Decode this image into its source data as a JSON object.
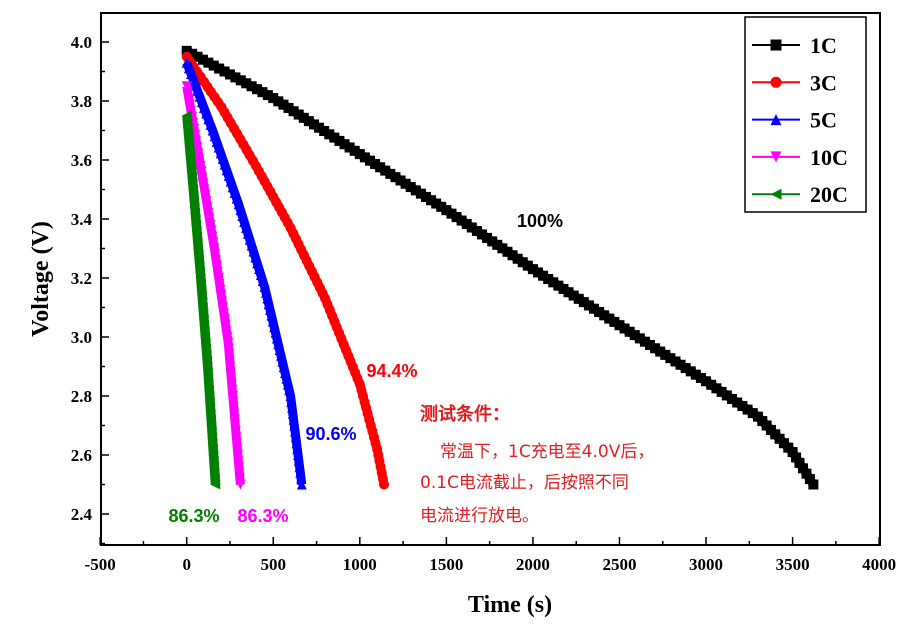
{
  "chart_data": {
    "type": "line",
    "xlabel": "Time (s)",
    "ylabel": "Voltage (V)",
    "xlim": [
      -500,
      4000
    ],
    "ylim": [
      2.3,
      4.1
    ],
    "xticks": [
      -500,
      0,
      500,
      1000,
      1500,
      2000,
      2500,
      3000,
      3500,
      4000
    ],
    "yticks": [
      "2.4",
      "2.6",
      "2.8",
      "3.0",
      "3.2",
      "3.4",
      "3.6",
      "3.8",
      "4.0"
    ],
    "legend_position": "top-right",
    "series": [
      {
        "name": "1C",
        "color": "#000000",
        "marker": "square",
        "x": [
          0,
          500,
          1000,
          1500,
          2000,
          2500,
          3000,
          3300,
          3500,
          3620
        ],
        "y": [
          3.97,
          3.81,
          3.62,
          3.43,
          3.23,
          3.04,
          2.85,
          2.73,
          2.61,
          2.5
        ]
      },
      {
        "name": "3C",
        "color": "#ff0000",
        "marker": "circle",
        "x": [
          0,
          200,
          400,
          600,
          800,
          1000,
          1100,
          1140
        ],
        "y": [
          3.95,
          3.78,
          3.58,
          3.37,
          3.13,
          2.84,
          2.62,
          2.5
        ]
      },
      {
        "name": "5C",
        "color": "#0000ff",
        "marker": "triangle-up",
        "x": [
          0,
          150,
          300,
          450,
          600,
          665
        ],
        "y": [
          3.93,
          3.7,
          3.45,
          3.17,
          2.8,
          2.5
        ]
      },
      {
        "name": "10C",
        "color": "#ff00ff",
        "marker": "triangle-down",
        "x": [
          0,
          80,
          160,
          240,
          310
        ],
        "y": [
          3.85,
          3.58,
          3.3,
          2.98,
          2.5
        ]
      },
      {
        "name": "20C",
        "color": "#008000",
        "marker": "triangle-left",
        "x": [
          0,
          40,
          80,
          120,
          165
        ],
        "y": [
          3.75,
          3.48,
          3.2,
          2.9,
          2.5
        ]
      }
    ],
    "annotations": [
      {
        "text": "100%",
        "color": "#000000"
      },
      {
        "text": "94.4%",
        "color": "#ff0000"
      },
      {
        "text": "90.6%",
        "color": "#0000ff"
      },
      {
        "text": "86.3%",
        "color": "#ff00ff"
      },
      {
        "text": "86.3%",
        "color": "#008000"
      }
    ],
    "note": {
      "title": "测试条件：",
      "lines": [
        "常温下，1C充电至4.0V后，",
        "0.1C电流截止，后按照不同",
        "电流进行放电。"
      ]
    }
  }
}
